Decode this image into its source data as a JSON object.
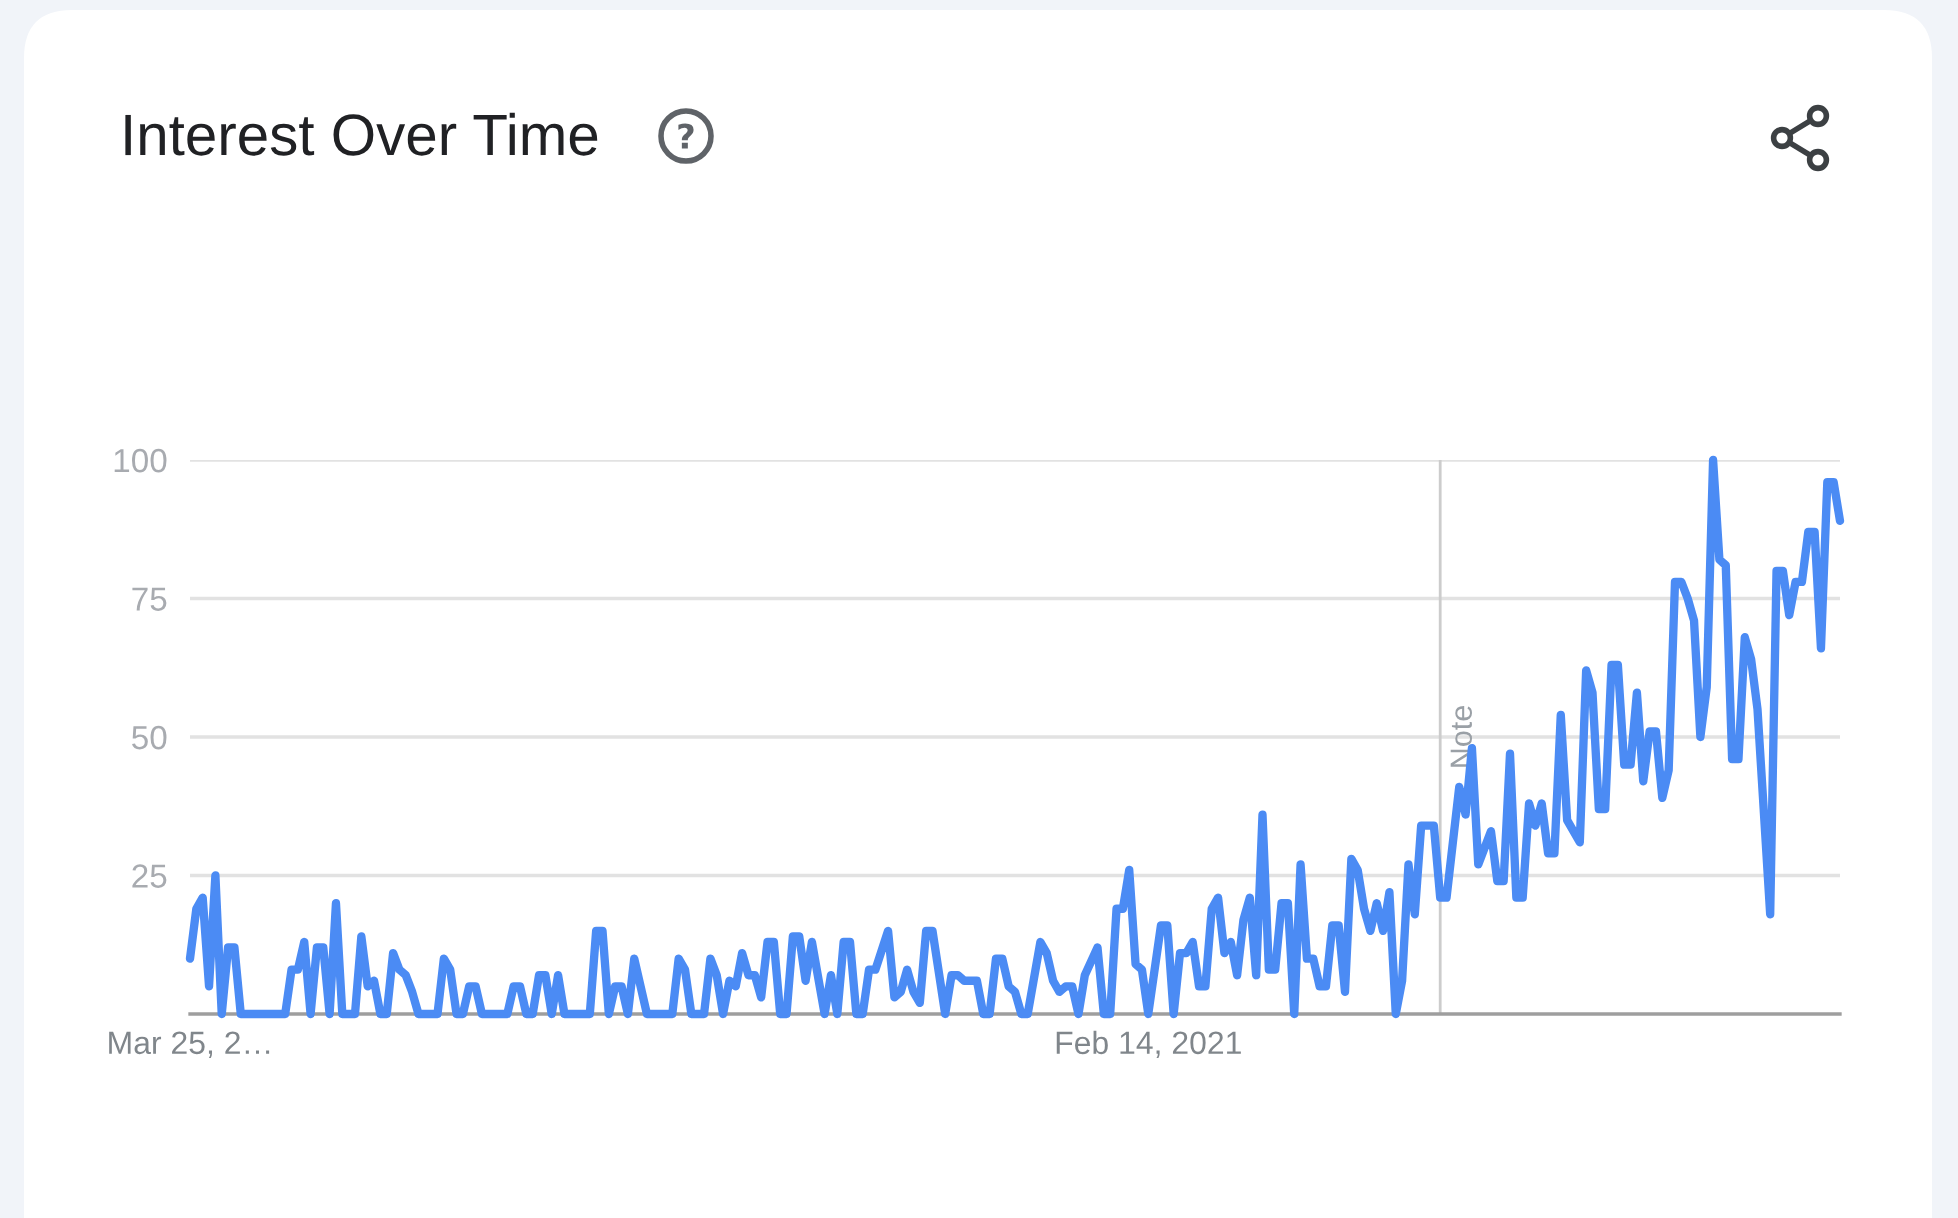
{
  "chart_data": {
    "type": "line",
    "title": "Interest Over Time",
    "xlim": [
      "2018-03-25",
      "2023-03-19"
    ],
    "xticks": [
      {
        "value": "2018-03-25",
        "label": "Mar 25, 2…"
      },
      {
        "value": "2021-02-14",
        "label": "Feb 14, 2021"
      }
    ],
    "ylim": [
      0,
      100
    ],
    "yticks": [
      25,
      50,
      75,
      100
    ],
    "grid": "y",
    "line_style": "solid",
    "ref_lines": [
      {
        "axis": "x",
        "value": "2022-01-02",
        "label": "Note",
        "color": "#cccccc"
      }
    ],
    "series": [
      {
        "color": "#4b8bf4",
        "x": [
          "2018-03-25",
          "2018-04-01",
          "2018-04-08",
          "2018-04-15",
          "2018-04-22",
          "2018-04-29",
          "2018-05-06",
          "2018-05-13",
          "2018-05-20",
          "2018-07-08",
          "2018-07-15",
          "2018-07-22",
          "2018-07-29",
          "2018-08-05",
          "2018-08-12",
          "2018-08-19",
          "2018-08-26",
          "2018-09-02",
          "2018-09-09",
          "2018-09-23",
          "2018-09-30",
          "2018-10-07",
          "2018-10-14",
          "2018-10-21",
          "2018-10-28",
          "2018-11-04",
          "2018-11-11",
          "2018-11-18",
          "2018-11-25",
          "2018-12-02",
          "2018-12-23",
          "2018-12-30",
          "2019-01-06",
          "2019-01-13",
          "2019-01-20",
          "2019-01-27",
          "2019-02-03",
          "2019-02-10",
          "2019-03-10",
          "2019-03-17",
          "2019-03-24",
          "2019-03-31",
          "2019-04-07",
          "2019-04-14",
          "2019-04-21",
          "2019-04-28",
          "2019-05-05",
          "2019-05-12",
          "2019-06-09",
          "2019-06-16",
          "2019-06-23",
          "2019-06-30",
          "2019-07-07",
          "2019-07-14",
          "2019-07-21",
          "2019-07-28",
          "2019-08-11",
          "2019-09-08",
          "2019-09-15",
          "2019-09-22",
          "2019-09-29",
          "2019-10-13",
          "2019-10-20",
          "2019-10-27",
          "2019-11-03",
          "2019-11-10",
          "2019-11-17",
          "2019-11-24",
          "2019-12-01",
          "2019-12-08",
          "2019-12-15",
          "2019-12-22",
          "2019-12-29",
          "2020-01-05",
          "2020-01-12",
          "2020-01-19",
          "2020-01-26",
          "2020-02-02",
          "2020-02-09",
          "2020-02-23",
          "2020-03-01",
          "2020-03-08",
          "2020-03-15",
          "2020-03-22",
          "2020-03-29",
          "2020-04-05",
          "2020-04-12",
          "2020-04-19",
          "2020-05-03",
          "2020-05-10",
          "2020-05-17",
          "2020-05-24",
          "2020-05-31",
          "2020-06-07",
          "2020-06-14",
          "2020-06-21",
          "2020-07-05",
          "2020-07-12",
          "2020-07-19",
          "2020-07-26",
          "2020-08-09",
          "2020-08-16",
          "2020-08-23",
          "2020-08-30",
          "2020-09-06",
          "2020-09-13",
          "2020-09-20",
          "2020-09-27",
          "2020-10-04",
          "2020-10-18",
          "2020-10-25",
          "2020-11-01",
          "2020-11-08",
          "2020-11-15",
          "2020-11-22",
          "2020-11-29",
          "2020-12-06",
          "2020-12-20",
          "2020-12-27",
          "2021-01-03",
          "2021-01-10",
          "2021-01-17",
          "2021-01-24",
          "2021-01-31",
          "2021-02-07",
          "2021-02-14",
          "2021-02-28",
          "2021-03-07",
          "2021-03-14",
          "2021-03-21",
          "2021-03-28",
          "2021-04-04",
          "2021-04-11",
          "2021-04-18",
          "2021-04-25",
          "2021-05-02",
          "2021-05-09",
          "2021-05-16",
          "2021-05-23",
          "2021-05-30",
          "2021-06-06",
          "2021-06-13",
          "2021-06-20",
          "2021-06-27",
          "2021-07-04",
          "2021-07-11",
          "2021-07-18",
          "2021-07-25",
          "2021-08-01",
          "2021-08-08",
          "2021-08-15",
          "2021-08-22",
          "2021-08-29",
          "2021-09-05",
          "2021-09-12",
          "2021-09-19",
          "2021-09-26",
          "2021-10-03",
          "2021-10-10",
          "2021-10-17",
          "2021-10-24",
          "2021-10-31",
          "2021-11-07",
          "2021-11-14",
          "2021-11-21",
          "2021-11-28",
          "2021-12-05",
          "2021-12-12",
          "2021-12-26",
          "2022-01-02",
          "2022-01-09",
          "2022-01-23",
          "2022-01-30",
          "2022-02-06",
          "2022-02-13",
          "2022-02-27",
          "2022-03-06",
          "2022-03-13",
          "2022-03-20",
          "2022-03-27",
          "2022-04-03",
          "2022-04-10",
          "2022-04-17",
          "2022-04-24",
          "2022-05-01",
          "2022-05-08",
          "2022-05-15",
          "2022-05-22",
          "2022-06-05",
          "2022-06-12",
          "2022-06-19",
          "2022-06-26",
          "2022-07-03",
          "2022-07-10",
          "2022-07-17",
          "2022-07-24",
          "2022-07-31",
          "2022-08-07",
          "2022-08-14",
          "2022-08-21",
          "2022-08-28",
          "2022-09-04",
          "2022-09-11",
          "2022-09-18",
          "2022-09-25",
          "2022-10-02",
          "2022-10-09",
          "2022-10-16",
          "2022-10-23",
          "2022-10-30",
          "2022-11-06",
          "2022-11-13",
          "2022-11-20",
          "2022-11-27",
          "2022-12-04",
          "2022-12-11",
          "2022-12-18",
          "2023-01-01",
          "2023-01-08",
          "2023-01-15",
          "2023-01-22",
          "2023-01-29",
          "2023-02-05",
          "2023-02-12",
          "2023-02-19",
          "2023-02-26",
          "2023-03-05",
          "2023-03-12",
          "2023-03-19"
        ],
        "values": [
          10,
          19,
          21,
          5,
          25,
          0,
          12,
          12,
          0,
          0,
          8,
          8,
          13,
          0,
          12,
          12,
          0,
          20,
          0,
          0,
          14,
          5,
          6,
          0,
          0,
          11,
          8,
          7,
          4,
          0,
          0,
          10,
          8,
          0,
          0,
          5,
          5,
          0,
          0,
          5,
          5,
          0,
          0,
          7,
          7,
          0,
          7,
          0,
          0,
          15,
          15,
          0,
          5,
          5,
          0,
          10,
          0,
          0,
          10,
          8,
          0,
          0,
          10,
          7,
          0,
          6,
          5,
          11,
          7,
          7,
          3,
          13,
          13,
          0,
          0,
          14,
          14,
          6,
          13,
          0,
          7,
          0,
          13,
          13,
          0,
          0,
          8,
          8,
          15,
          3,
          4,
          8,
          4,
          2,
          15,
          15,
          0,
          7,
          7,
          6,
          6,
          0,
          0,
          10,
          10,
          5,
          4,
          0,
          0,
          13,
          11,
          6,
          4,
          5,
          5,
          0,
          7,
          12,
          0,
          0,
          19,
          19,
          26,
          9,
          8,
          0,
          16,
          16,
          0,
          11,
          11,
          13,
          5,
          5,
          19,
          21,
          11,
          13,
          7,
          17,
          21,
          7,
          36,
          8,
          8,
          20,
          20,
          0,
          27,
          10,
          10,
          5,
          5,
          16,
          16,
          4,
          28,
          26,
          19,
          15,
          20,
          15,
          22,
          0,
          6,
          27,
          18,
          34,
          34,
          21,
          21,
          41,
          36,
          48,
          27,
          33,
          24,
          24,
          47,
          21,
          21,
          38,
          34,
          38,
          29,
          29,
          54,
          35,
          31,
          62,
          58,
          37,
          37,
          63,
          63,
          45,
          45,
          58,
          42,
          51,
          51,
          39,
          44,
          78,
          78,
          75,
          71,
          50,
          59,
          100,
          82,
          81,
          46,
          46,
          68,
          64,
          55,
          18,
          80,
          80,
          72,
          78,
          78,
          87,
          87,
          66,
          96,
          96,
          89
        ]
      }
    ]
  }
}
